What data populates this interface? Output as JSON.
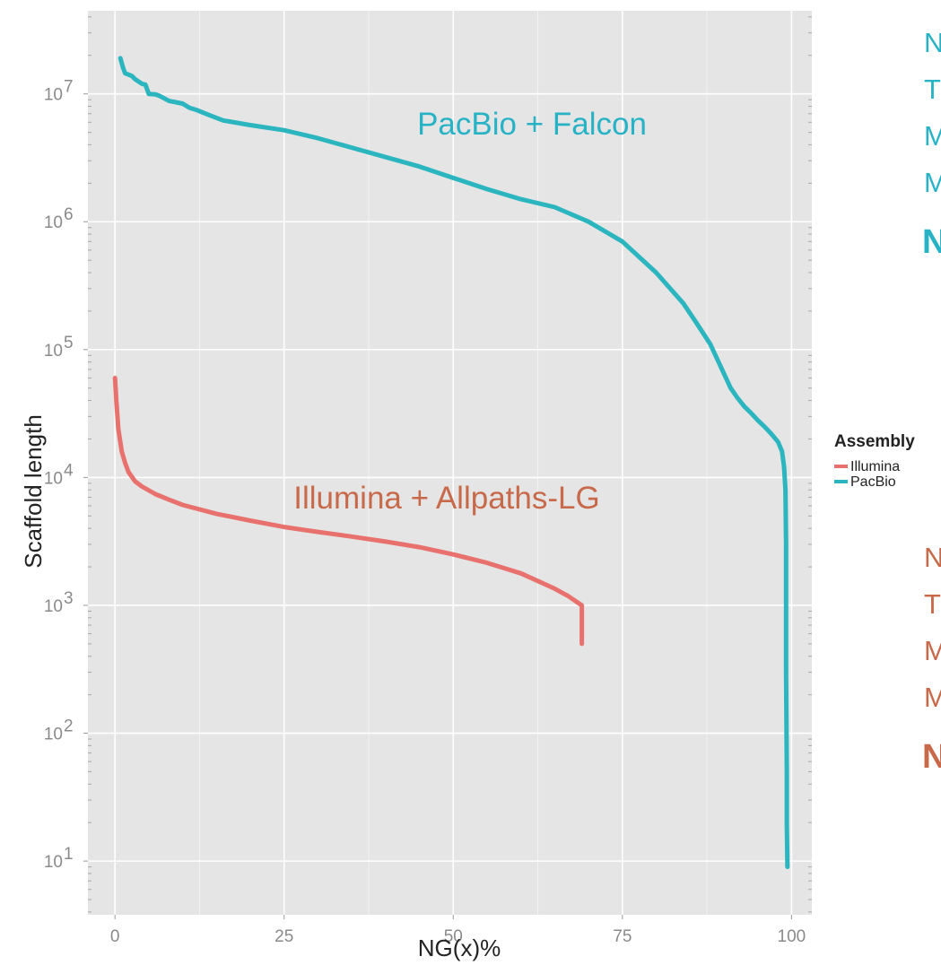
{
  "colors": {
    "panel_bg": "#e5e5e5",
    "grid": "#ffffff",
    "illumina": "#e8716d",
    "pacbio": "#2bb5bf",
    "annot_illumina": "#c8694a",
    "annot_pacbio": "#27b3c5"
  },
  "chart_data": {
    "type": "line",
    "title": "",
    "xlabel": "NG(x)%",
    "ylabel": "Scaffold length",
    "xlim": [
      -4,
      103
    ],
    "ylim_log10": [
      0.58,
      7.65
    ],
    "y_scale": "log10",
    "grid": true,
    "x_ticks": [
      {
        "value": 0,
        "label": "0"
      },
      {
        "value": 25,
        "label": "25"
      },
      {
        "value": 50,
        "label": "50"
      },
      {
        "value": 75,
        "label": "75"
      },
      {
        "value": 100,
        "label": "100"
      }
    ],
    "y_ticks": [
      {
        "value": 1,
        "base": "10",
        "exp": "1"
      },
      {
        "value": 2,
        "base": "10",
        "exp": "2"
      },
      {
        "value": 3,
        "base": "10",
        "exp": "3"
      },
      {
        "value": 4,
        "base": "10",
        "exp": "4"
      },
      {
        "value": 5,
        "base": "10",
        "exp": "5"
      },
      {
        "value": 6,
        "base": "10",
        "exp": "6"
      },
      {
        "value": 7,
        "base": "10",
        "exp": "7"
      }
    ],
    "legend": {
      "title": "Assembly",
      "placement": "right",
      "entries": [
        "Illumina",
        "PacBio"
      ]
    },
    "series": [
      {
        "name": "Illumina",
        "color": "#e8716d",
        "x": [
          0,
          0.2,
          0.5,
          1,
          1.5,
          2,
          3,
          4,
          6,
          8,
          10,
          15,
          20,
          25,
          30,
          35,
          40,
          45,
          50,
          55,
          60,
          65,
          67,
          69,
          69,
          69
        ],
        "y": [
          60000,
          40000,
          24000,
          16000,
          13000,
          11000,
          9300,
          8500,
          7400,
          6700,
          6100,
          5200,
          4600,
          4100,
          3750,
          3450,
          3150,
          2850,
          2500,
          2150,
          1780,
          1350,
          1180,
          1000,
          700,
          500
        ]
      },
      {
        "name": "PacBio",
        "color": "#2bb5bf",
        "x": [
          0.8,
          1.2,
          1.5,
          2.5,
          3,
          4,
          4.5,
          5,
          6,
          6.5,
          8,
          9,
          10,
          11,
          12,
          14,
          16,
          20,
          25,
          30,
          35,
          40,
          45,
          50,
          55,
          60,
          65,
          70,
          75,
          80,
          84,
          86,
          88,
          90,
          91,
          92,
          93,
          94,
          95,
          96,
          97,
          98,
          98.6,
          98.9,
          99.1,
          99.2,
          99.2,
          99.3,
          99.3,
          99.4
        ],
        "y": [
          19000000,
          16000000,
          14500000,
          13800000,
          13000000,
          12000000,
          11800000,
          10000000,
          9900000,
          9700000,
          8800000,
          8600000,
          8400000,
          7800000,
          7500000,
          6800000,
          6200000,
          5700000,
          5200000,
          4500000,
          3800000,
          3200000,
          2700000,
          2200000,
          1800000,
          1500000,
          1300000,
          1000000,
          700000,
          400000,
          230000,
          160000,
          110000,
          65000,
          50000,
          42000,
          36000,
          32000,
          28000,
          25000,
          22000,
          19000,
          16000,
          12000,
          8000,
          3000,
          300,
          50,
          20,
          9
        ]
      }
    ],
    "annotations": [
      {
        "text": "PacBio + Falcon",
        "series": "PacBio"
      },
      {
        "text": "Illumina + Allpaths-LG",
        "series": "Illumina"
      }
    ]
  },
  "side_text": {
    "top_lines": [
      "N",
      "T",
      "M",
      "M"
    ],
    "top_bold": "N",
    "bottom_lines": [
      "N",
      "T",
      "M",
      "M"
    ],
    "bottom_bold": "N"
  }
}
